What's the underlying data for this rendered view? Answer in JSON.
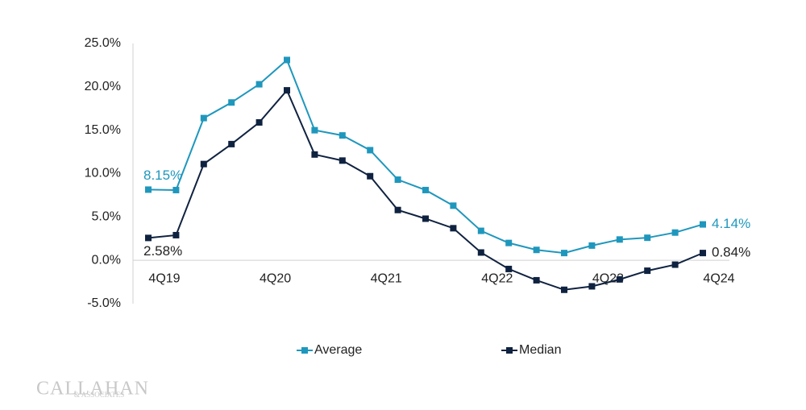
{
  "chart_data": {
    "type": "line",
    "categories": [
      "4Q19",
      null,
      null,
      null,
      "4Q20",
      null,
      null,
      null,
      "4Q21",
      null,
      null,
      null,
      "4Q22",
      null,
      null,
      null,
      "4Q23",
      null,
      null,
      null,
      "4Q24"
    ],
    "series": [
      {
        "name": "Average",
        "color": "#1f97bd",
        "values": [
          8.15,
          8.1,
          16.4,
          18.2,
          20.3,
          23.1,
          15.0,
          14.4,
          12.7,
          9.3,
          8.1,
          6.3,
          3.4,
          2.0,
          1.2,
          0.84,
          1.7,
          2.4,
          2.6,
          3.2,
          4.14
        ],
        "value_labels": [
          "8.15%",
          null,
          null,
          null,
          null,
          null,
          null,
          null,
          null,
          null,
          null,
          null,
          null,
          null,
          null,
          null,
          null,
          null,
          null,
          null,
          "4.14%"
        ]
      },
      {
        "name": "Median",
        "color": "#0f2240",
        "values": [
          2.58,
          2.9,
          11.1,
          13.4,
          15.9,
          19.6,
          12.2,
          11.5,
          9.7,
          5.8,
          4.8,
          3.7,
          0.9,
          -1.0,
          -2.3,
          -3.4,
          -3.0,
          -2.2,
          -1.2,
          -0.5,
          0.84
        ],
        "value_labels": [
          "2.58%",
          null,
          null,
          null,
          null,
          null,
          null,
          null,
          null,
          null,
          null,
          null,
          null,
          null,
          null,
          null,
          null,
          null,
          null,
          null,
          "0.84%"
        ]
      }
    ],
    "ylim": [
      -5,
      25
    ],
    "yticks": [
      {
        "value": -5,
        "label": "-5.0%"
      },
      {
        "value": 0,
        "label": "0.0%"
      },
      {
        "value": 5,
        "label": "5.0%"
      },
      {
        "value": 10,
        "label": "10.0%"
      },
      {
        "value": 15,
        "label": "15.0%"
      },
      {
        "value": 20,
        "label": "20.0%"
      },
      {
        "value": 25,
        "label": "25.0%"
      }
    ],
    "legend": "bottom",
    "logo": "CALLAHAN",
    "logo_sub": "& ASSOCIATES"
  }
}
